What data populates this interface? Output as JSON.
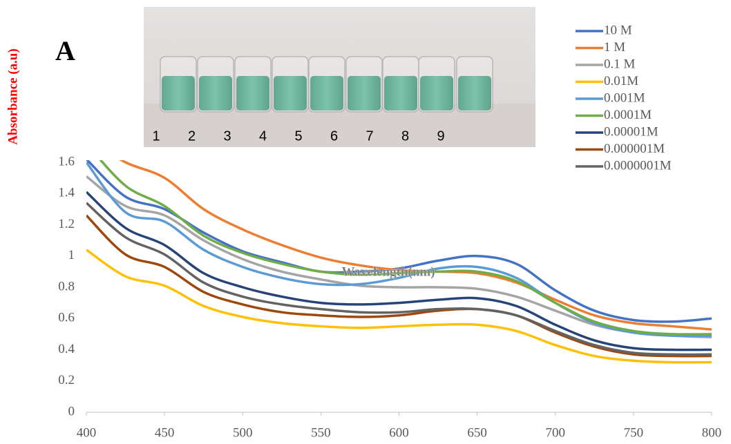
{
  "chart_data": {
    "type": "line",
    "panel_label": "A",
    "inset_labels": [
      "1",
      "2",
      "3",
      "4",
      "5",
      "6",
      "7",
      "8",
      "9"
    ],
    "y_label": "Absorbance (a.u)",
    "x_label": "Wavelength(nm)",
    "x": [
      400,
      425,
      450,
      475,
      500,
      525,
      550,
      575,
      600,
      625,
      650,
      675,
      700,
      725,
      750,
      775,
      800
    ],
    "series": [
      {
        "name": "10 M",
        "color": "#4472c4",
        "values": [
          1.62,
          1.38,
          1.3,
          1.15,
          1.03,
          0.96,
          0.9,
          0.9,
          0.92,
          0.97,
          1.0,
          0.95,
          0.78,
          0.65,
          0.59,
          0.58,
          0.6
        ]
      },
      {
        "name": "1 M",
        "color": "#ed7d31",
        "values": [
          1.75,
          1.6,
          1.5,
          1.3,
          1.17,
          1.07,
          0.99,
          0.94,
          0.91,
          0.9,
          0.89,
          0.83,
          0.72,
          0.62,
          0.57,
          0.55,
          0.53
        ]
      },
      {
        "name": "0.1 M",
        "color": "#a5a5a5",
        "values": [
          1.51,
          1.32,
          1.26,
          1.1,
          0.98,
          0.9,
          0.85,
          0.81,
          0.8,
          0.8,
          0.79,
          0.74,
          0.65,
          0.56,
          0.51,
          0.49,
          0.48
        ]
      },
      {
        "name": "0.01M",
        "color": "#ffc000",
        "values": [
          1.04,
          0.87,
          0.81,
          0.68,
          0.61,
          0.57,
          0.55,
          0.54,
          0.55,
          0.56,
          0.56,
          0.52,
          0.43,
          0.36,
          0.33,
          0.32,
          0.32
        ]
      },
      {
        "name": "0.001M",
        "color": "#5b9bd5",
        "values": [
          1.6,
          1.28,
          1.22,
          1.04,
          0.93,
          0.86,
          0.82,
          0.82,
          0.86,
          0.92,
          0.93,
          0.86,
          0.7,
          0.57,
          0.51,
          0.49,
          0.49
        ]
      },
      {
        "name": "0.0001M",
        "color": "#70ad47",
        "values": [
          1.72,
          1.45,
          1.32,
          1.13,
          1.02,
          0.95,
          0.9,
          0.88,
          0.89,
          0.9,
          0.9,
          0.84,
          0.7,
          0.58,
          0.52,
          0.5,
          0.5
        ]
      },
      {
        "name": "0.00001M",
        "color": "#264478",
        "values": [
          1.41,
          1.18,
          1.07,
          0.89,
          0.8,
          0.74,
          0.7,
          0.69,
          0.7,
          0.72,
          0.73,
          0.68,
          0.56,
          0.46,
          0.41,
          0.4,
          0.4
        ]
      },
      {
        "name": "0.000001M",
        "color": "#9e480e",
        "values": [
          1.26,
          1.01,
          0.93,
          0.77,
          0.69,
          0.64,
          0.62,
          0.61,
          0.62,
          0.65,
          0.66,
          0.62,
          0.51,
          0.42,
          0.37,
          0.36,
          0.36
        ]
      },
      {
        "name": "0.0000001M",
        "color": "#636363",
        "values": [
          1.34,
          1.12,
          1.01,
          0.83,
          0.74,
          0.69,
          0.66,
          0.64,
          0.64,
          0.66,
          0.66,
          0.62,
          0.52,
          0.43,
          0.38,
          0.37,
          0.37
        ]
      }
    ],
    "xlim": [
      400,
      800
    ],
    "xticks": [
      400,
      450,
      500,
      550,
      600,
      650,
      700,
      750,
      800
    ],
    "ylim": [
      0,
      1.6
    ],
    "yticks": [
      0,
      0.2,
      0.4,
      0.6,
      0.8,
      1,
      1.2,
      1.4,
      1.6
    ],
    "grid": false
  }
}
